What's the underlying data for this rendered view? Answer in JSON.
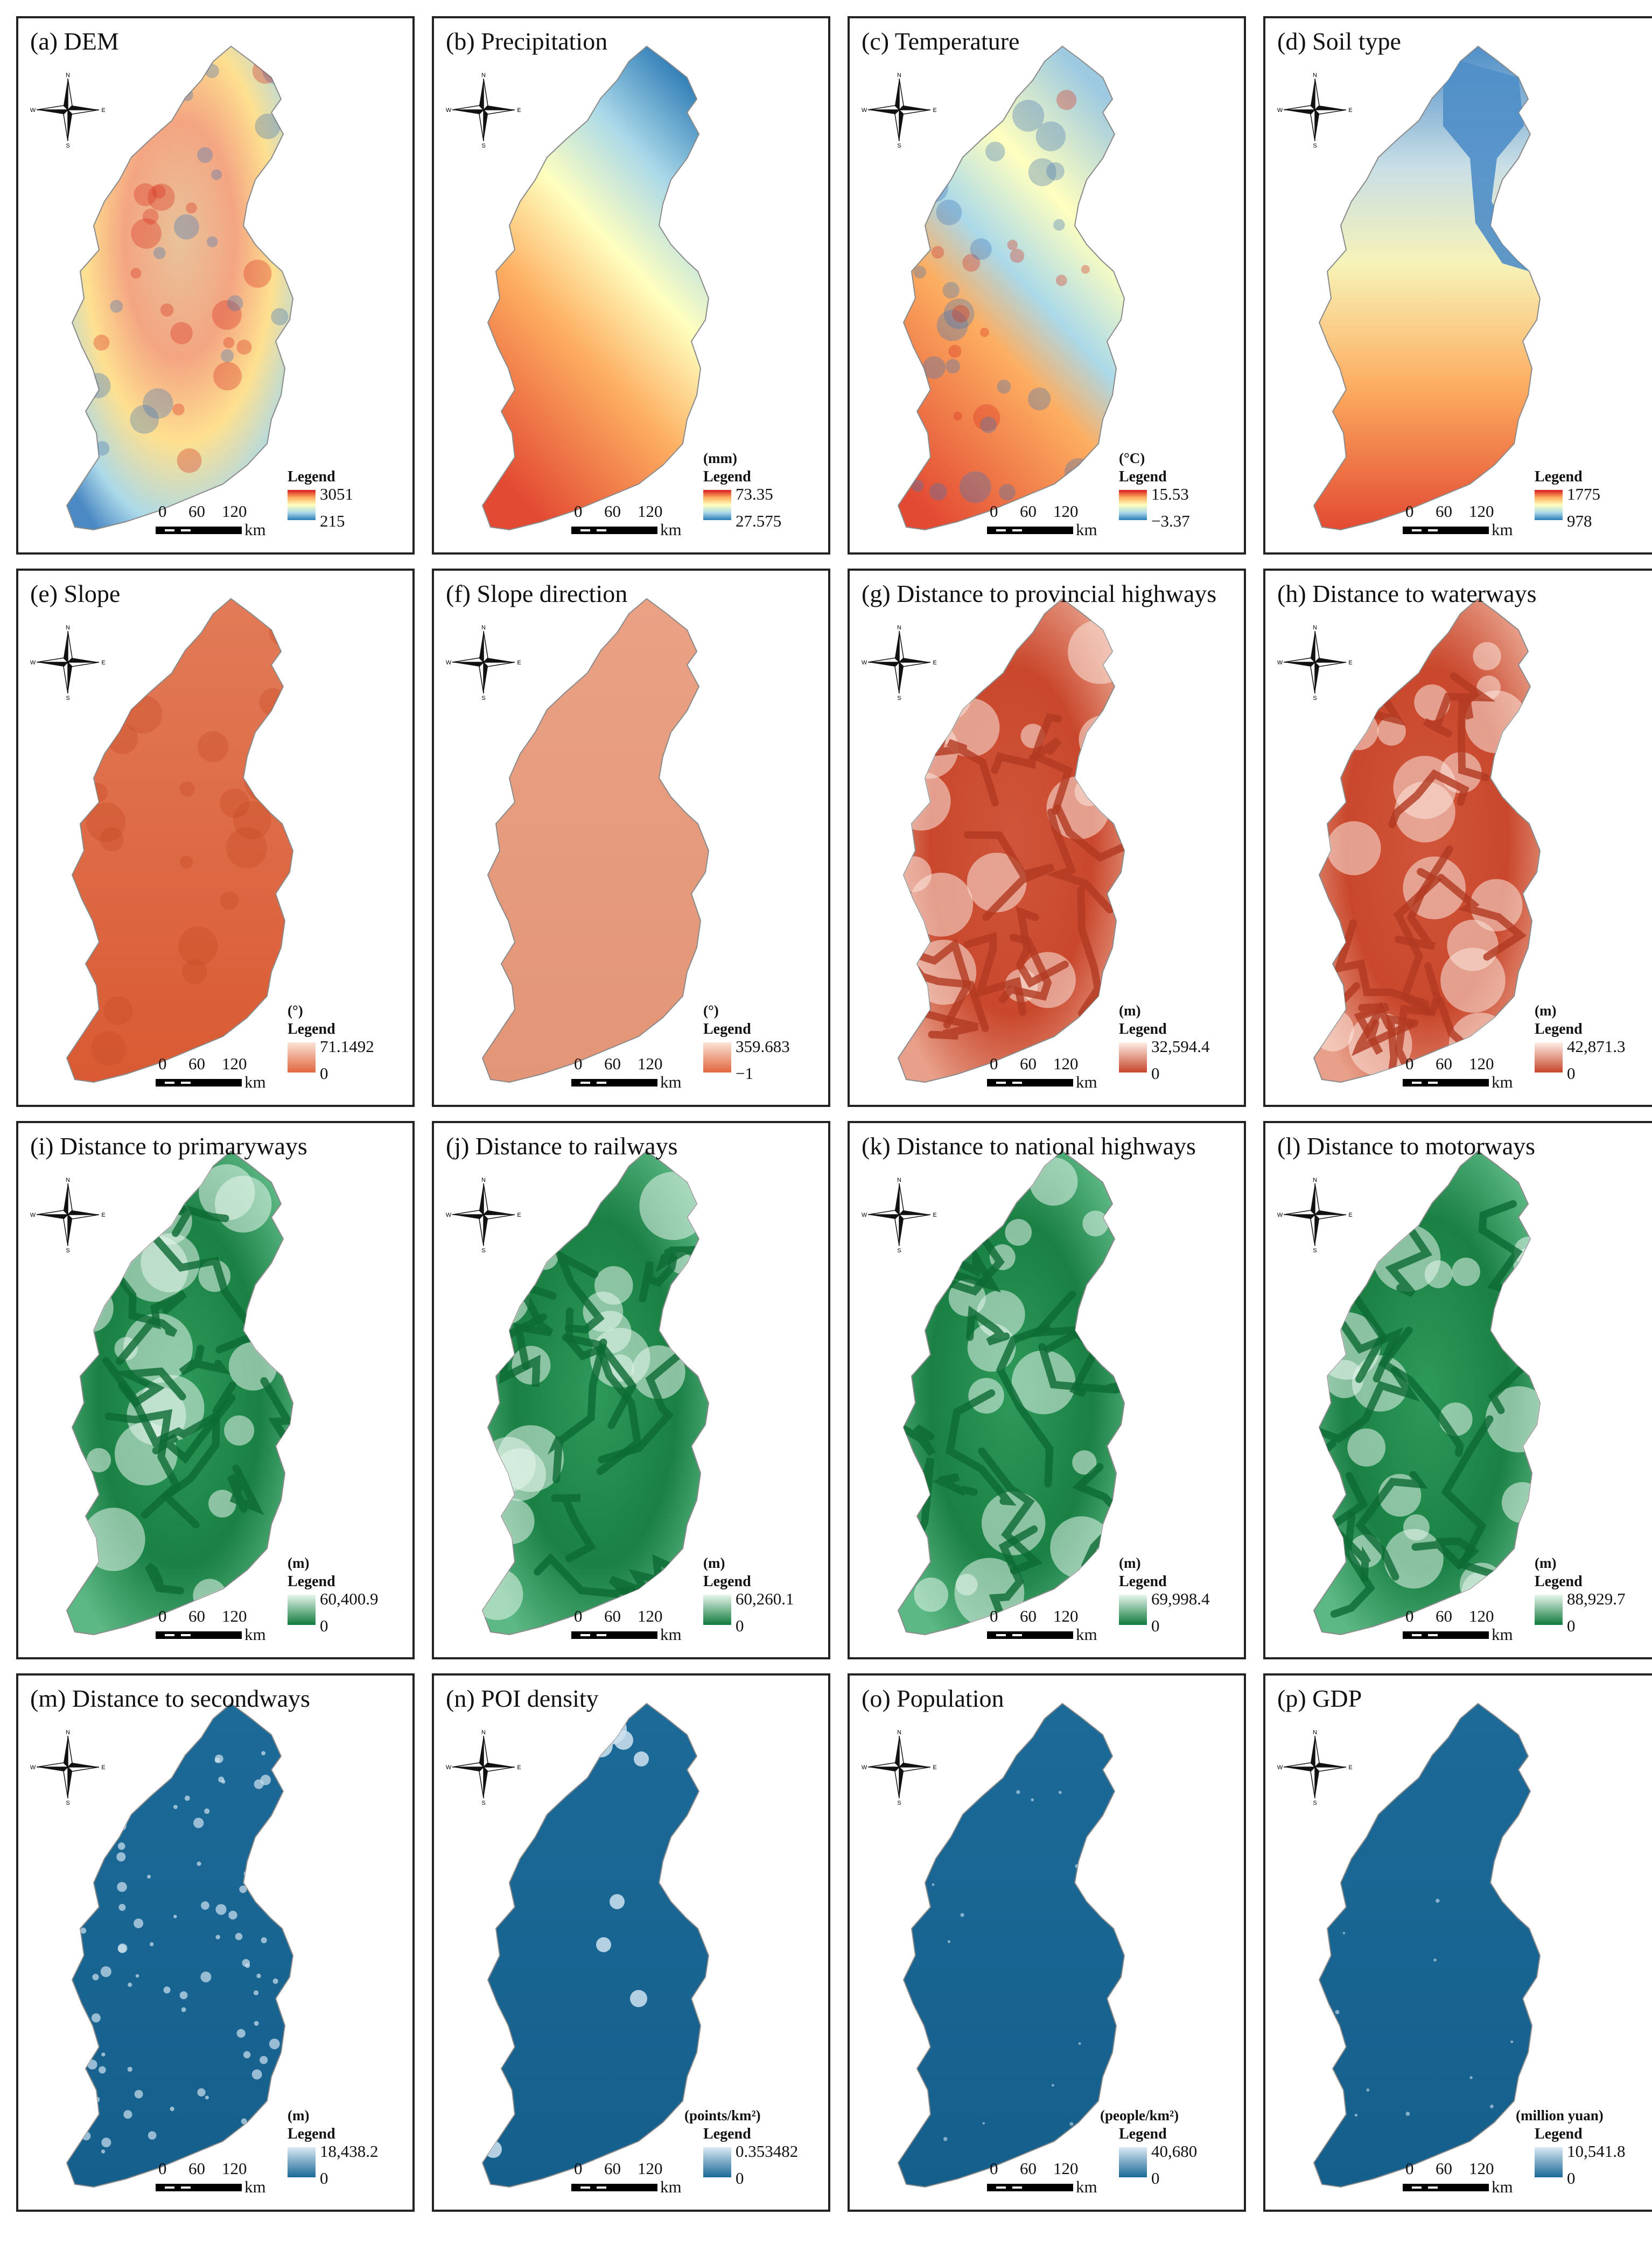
{
  "panels": [
    {
      "title": "(a) DEM",
      "unit": "",
      "legend": "Legend",
      "max": "3051",
      "min": "215",
      "scheme": "dem",
      "ramp": [
        "#d7191c",
        "#fdae61",
        "#ffffbf",
        "#abd9e9",
        "#2c7bb6"
      ],
      "mapshape": "dem"
    },
    {
      "title": "(b) Precipitation",
      "unit": "(mm)",
      "legend": "Legend",
      "max": "73.35",
      "min": "27.575",
      "scheme": "precip",
      "ramp": [
        "#d7191c",
        "#fdae61",
        "#ffffbf",
        "#abd9e9",
        "#2c7bb6"
      ]
    },
    {
      "title": "(c) Temperature",
      "unit": "(°C)",
      "legend": "Legend",
      "max": "15.53",
      "min": "−3.37",
      "scheme": "temp",
      "ramp": [
        "#d7191c",
        "#fdae61",
        "#ffffbf",
        "#abd9e9",
        "#2c7bb6"
      ]
    },
    {
      "title": "(d) Soil type",
      "unit": "",
      "legend": "Legend",
      "max": "1775",
      "min": "978",
      "scheme": "soil",
      "ramp": [
        "#d7191c",
        "#fdae61",
        "#ffffbf",
        "#abd9e9",
        "#2c7bb6"
      ]
    },
    {
      "title": "(e) Slope",
      "unit": "(°)",
      "legend": "Legend",
      "max": "71.1492",
      "min": "0",
      "scheme": "slope",
      "ramp": [
        "#fbe3d6",
        "#e0663e"
      ]
    },
    {
      "title": "(f) Slope direction",
      "unit": "(°)",
      "legend": "Legend",
      "max": "359.683",
      "min": "−1",
      "scheme": "aspect",
      "ramp": [
        "#fbe3d6",
        "#e0663e"
      ]
    },
    {
      "title": "(g) Distance to provincial highways",
      "unit": "(m)",
      "legend": "Legend",
      "max": "32,594.4",
      "min": "0",
      "scheme": "dist-red",
      "ramp": [
        "#fdeee6",
        "#c7442a"
      ]
    },
    {
      "title": "(h) Distance to waterways",
      "unit": "(m)",
      "legend": "Legend",
      "max": "42,871.3",
      "min": "0",
      "scheme": "dist-red",
      "ramp": [
        "#fdeee6",
        "#c7442a"
      ]
    },
    {
      "title": "(i) Distance to primaryways",
      "unit": "(m)",
      "legend": "Legend",
      "max": "60,400.9",
      "min": "0",
      "scheme": "dist-green",
      "ramp": [
        "#e8f6ee",
        "#0f7a3b"
      ]
    },
    {
      "title": "(j) Distance to railways",
      "unit": "(m)",
      "legend": "Legend",
      "max": "60,260.1",
      "min": "0",
      "scheme": "dist-green",
      "ramp": [
        "#e8f6ee",
        "#0f7a3b"
      ]
    },
    {
      "title": "(k) Distance to national highways",
      "unit": "(m)",
      "legend": "Legend",
      "max": "69,998.4",
      "min": "0",
      "scheme": "dist-green",
      "ramp": [
        "#e8f6ee",
        "#0f7a3b"
      ]
    },
    {
      "title": "(l) Distance to motorways",
      "unit": "(m)",
      "legend": "Legend",
      "max": "88,929.7",
      "min": "0",
      "scheme": "dist-green",
      "ramp": [
        "#e8f6ee",
        "#0f7a3b"
      ]
    },
    {
      "title": "(m) Distance to secondways",
      "unit": "(m)",
      "legend": "Legend",
      "max": "18,438.2",
      "min": "0",
      "scheme": "dist-blue",
      "ramp": [
        "#dbe9f3",
        "#1a6896"
      ]
    },
    {
      "title": "(n) POI density",
      "unit": "(points/km²)",
      "legend": "Legend",
      "max": "0.353482",
      "min": "0",
      "scheme": "poi",
      "ramp": [
        "#dbe9f3",
        "#1a6896"
      ]
    },
    {
      "title": "(o) Population",
      "unit": "(people/km²)",
      "legend": "Legend",
      "max": "40,680",
      "min": "0",
      "scheme": "pop",
      "ramp": [
        "#dbe9f3",
        "#1a6896"
      ]
    },
    {
      "title": "(p) GDP",
      "unit": "(million yuan)",
      "legend": "Legend",
      "max": "10,541.8",
      "min": "0",
      "scheme": "gdp",
      "ramp": [
        "#dbe9f3",
        "#1a6896"
      ]
    }
  ],
  "scalebar": {
    "ticks": [
      "0",
      "60",
      "120"
    ],
    "unit": "km"
  },
  "compass": {
    "n": "N",
    "s": "S",
    "e": "E",
    "w": "W"
  }
}
